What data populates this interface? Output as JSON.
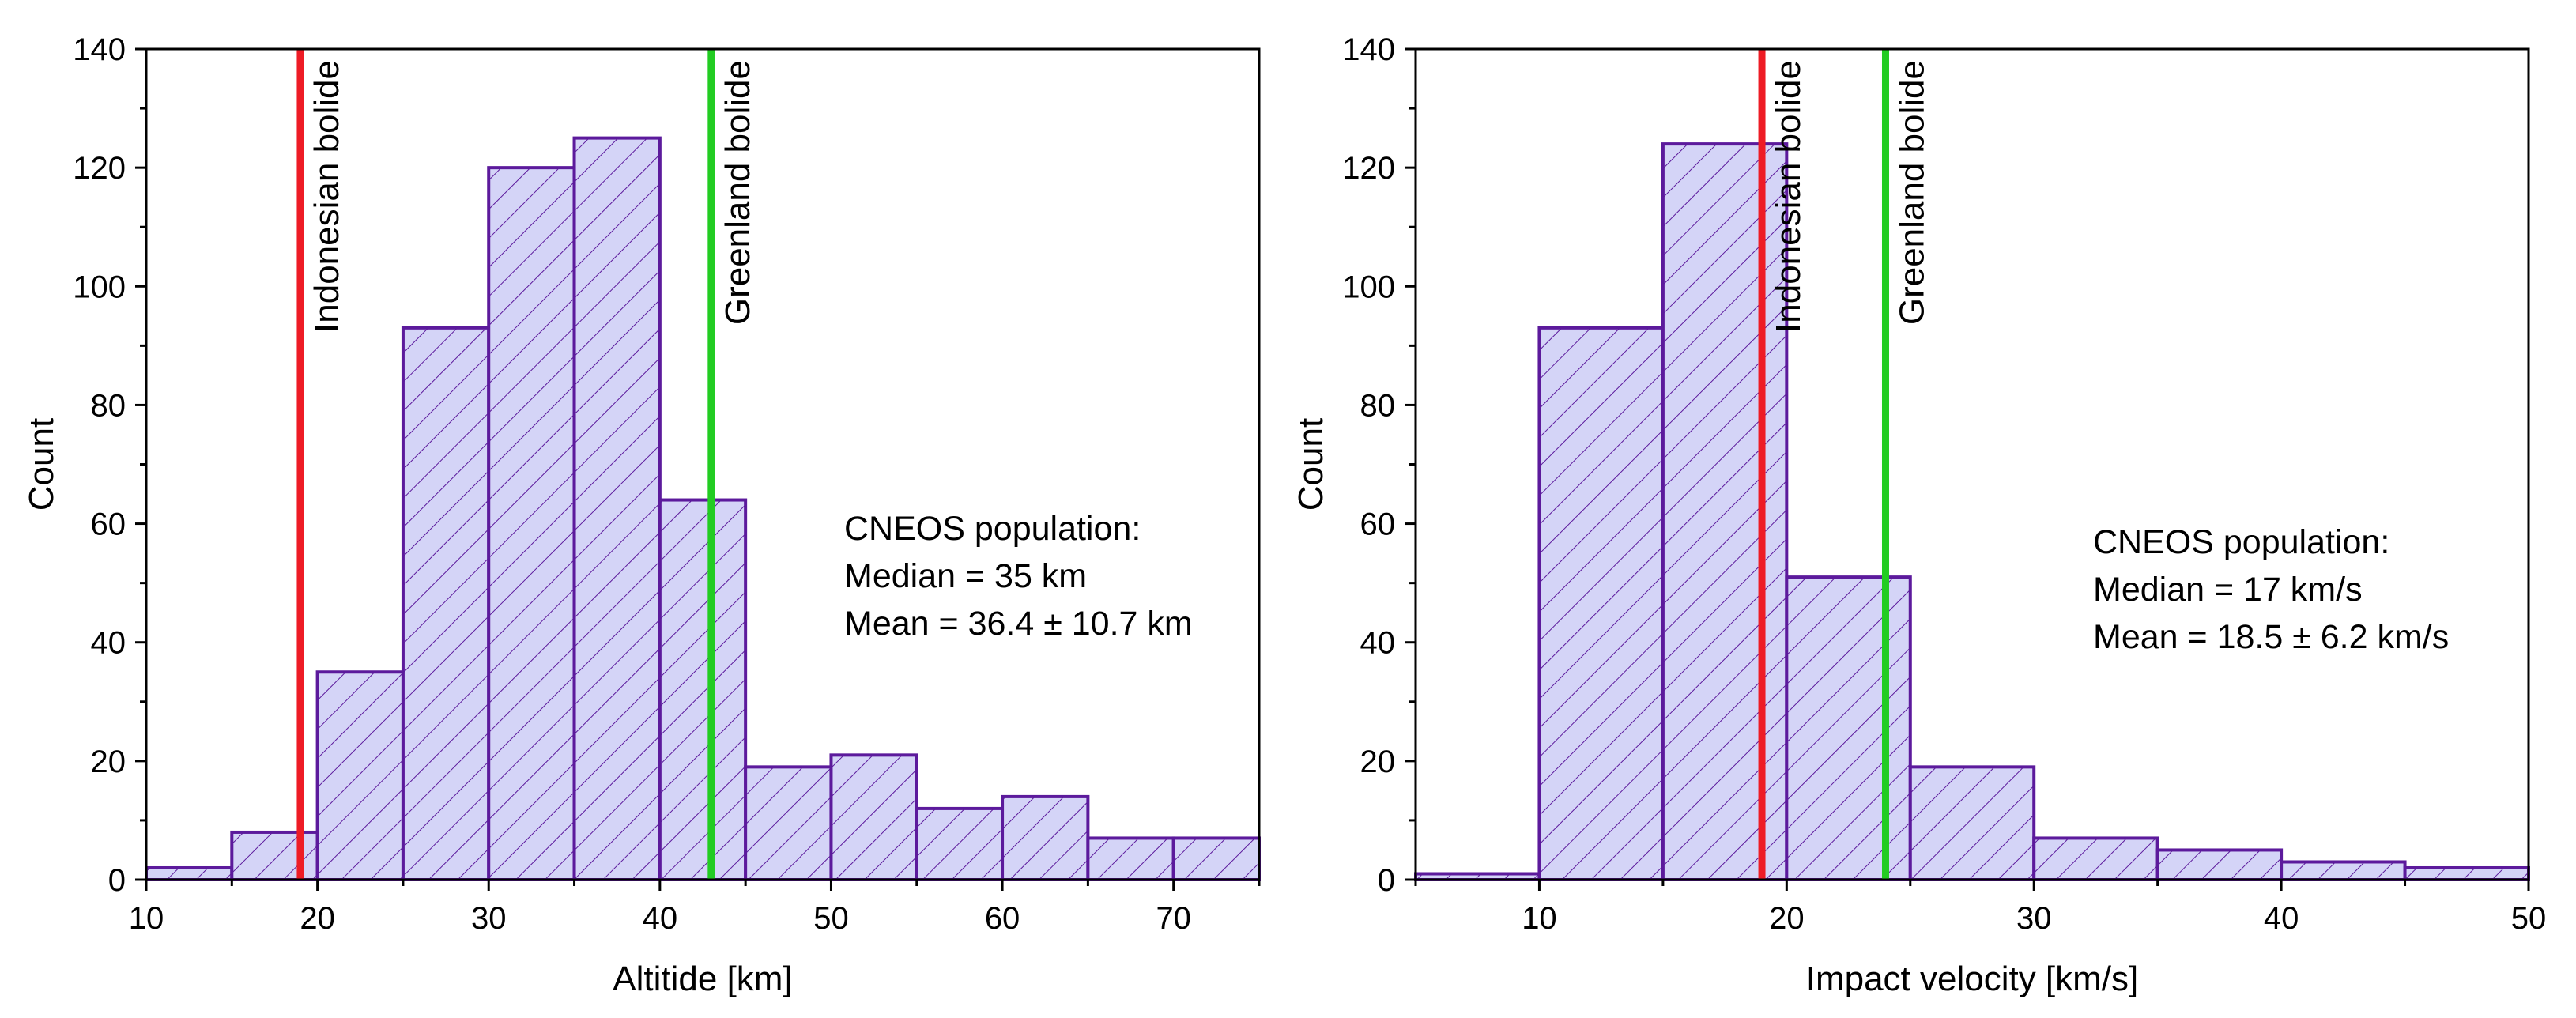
{
  "colors": {
    "bar_fill": "#d4d4f7",
    "bar_edge": "#5c1a9c",
    "hatch": "#5c1a9c",
    "indonesian_line": "#ee1c25",
    "greenland_line": "#22cc22",
    "axis": "#000000"
  },
  "chart_data": [
    {
      "type": "bar",
      "xlabel": "Altitide [km]",
      "ylabel": "Count",
      "xlim": [
        10,
        75
      ],
      "ylim": [
        0,
        140
      ],
      "xticks": [
        10,
        20,
        30,
        40,
        50,
        60,
        70
      ],
      "yticks": [
        0,
        20,
        40,
        60,
        80,
        100,
        120,
        140
      ],
      "bin_edges": [
        10,
        15,
        20,
        25,
        30,
        35,
        40,
        45,
        50,
        55,
        60,
        65,
        70,
        75
      ],
      "values": [
        2,
        8,
        35,
        93,
        120,
        125,
        64,
        19,
        21,
        12,
        14,
        7,
        7
      ],
      "markers": [
        {
          "label": "Indonesian bolide",
          "x": 19,
          "color": "#ee1c25"
        },
        {
          "label": "Greenland bolide",
          "x": 43,
          "color": "#22cc22"
        }
      ],
      "annotation": [
        "CNEOS population:",
        "Median = 35 km",
        "Mean = 36.4 ± 10.7 km"
      ],
      "grid": false
    },
    {
      "type": "bar",
      "xlabel": "Impact velocity [km/s]",
      "ylabel": "Count",
      "xlim": [
        5,
        50
      ],
      "ylim": [
        0,
        140
      ],
      "xticks": [
        10,
        20,
        30,
        40,
        50
      ],
      "yticks": [
        0,
        20,
        40,
        60,
        80,
        100,
        120,
        140
      ],
      "bin_edges": [
        5,
        10,
        15,
        20,
        25,
        30,
        35,
        40,
        45,
        50
      ],
      "values": [
        1,
        93,
        124,
        51,
        19,
        7,
        5,
        3,
        2
      ],
      "markers": [
        {
          "label": "Indonesian bolide",
          "x": 19,
          "color": "#ee1c25"
        },
        {
          "label": "Greenland bolide",
          "x": 24,
          "color": "#22cc22"
        }
      ],
      "annotation": [
        "CNEOS population:",
        "Median = 17 km/s",
        "Mean = 18.5 ± 6.2 km/s"
      ],
      "grid": false
    }
  ]
}
